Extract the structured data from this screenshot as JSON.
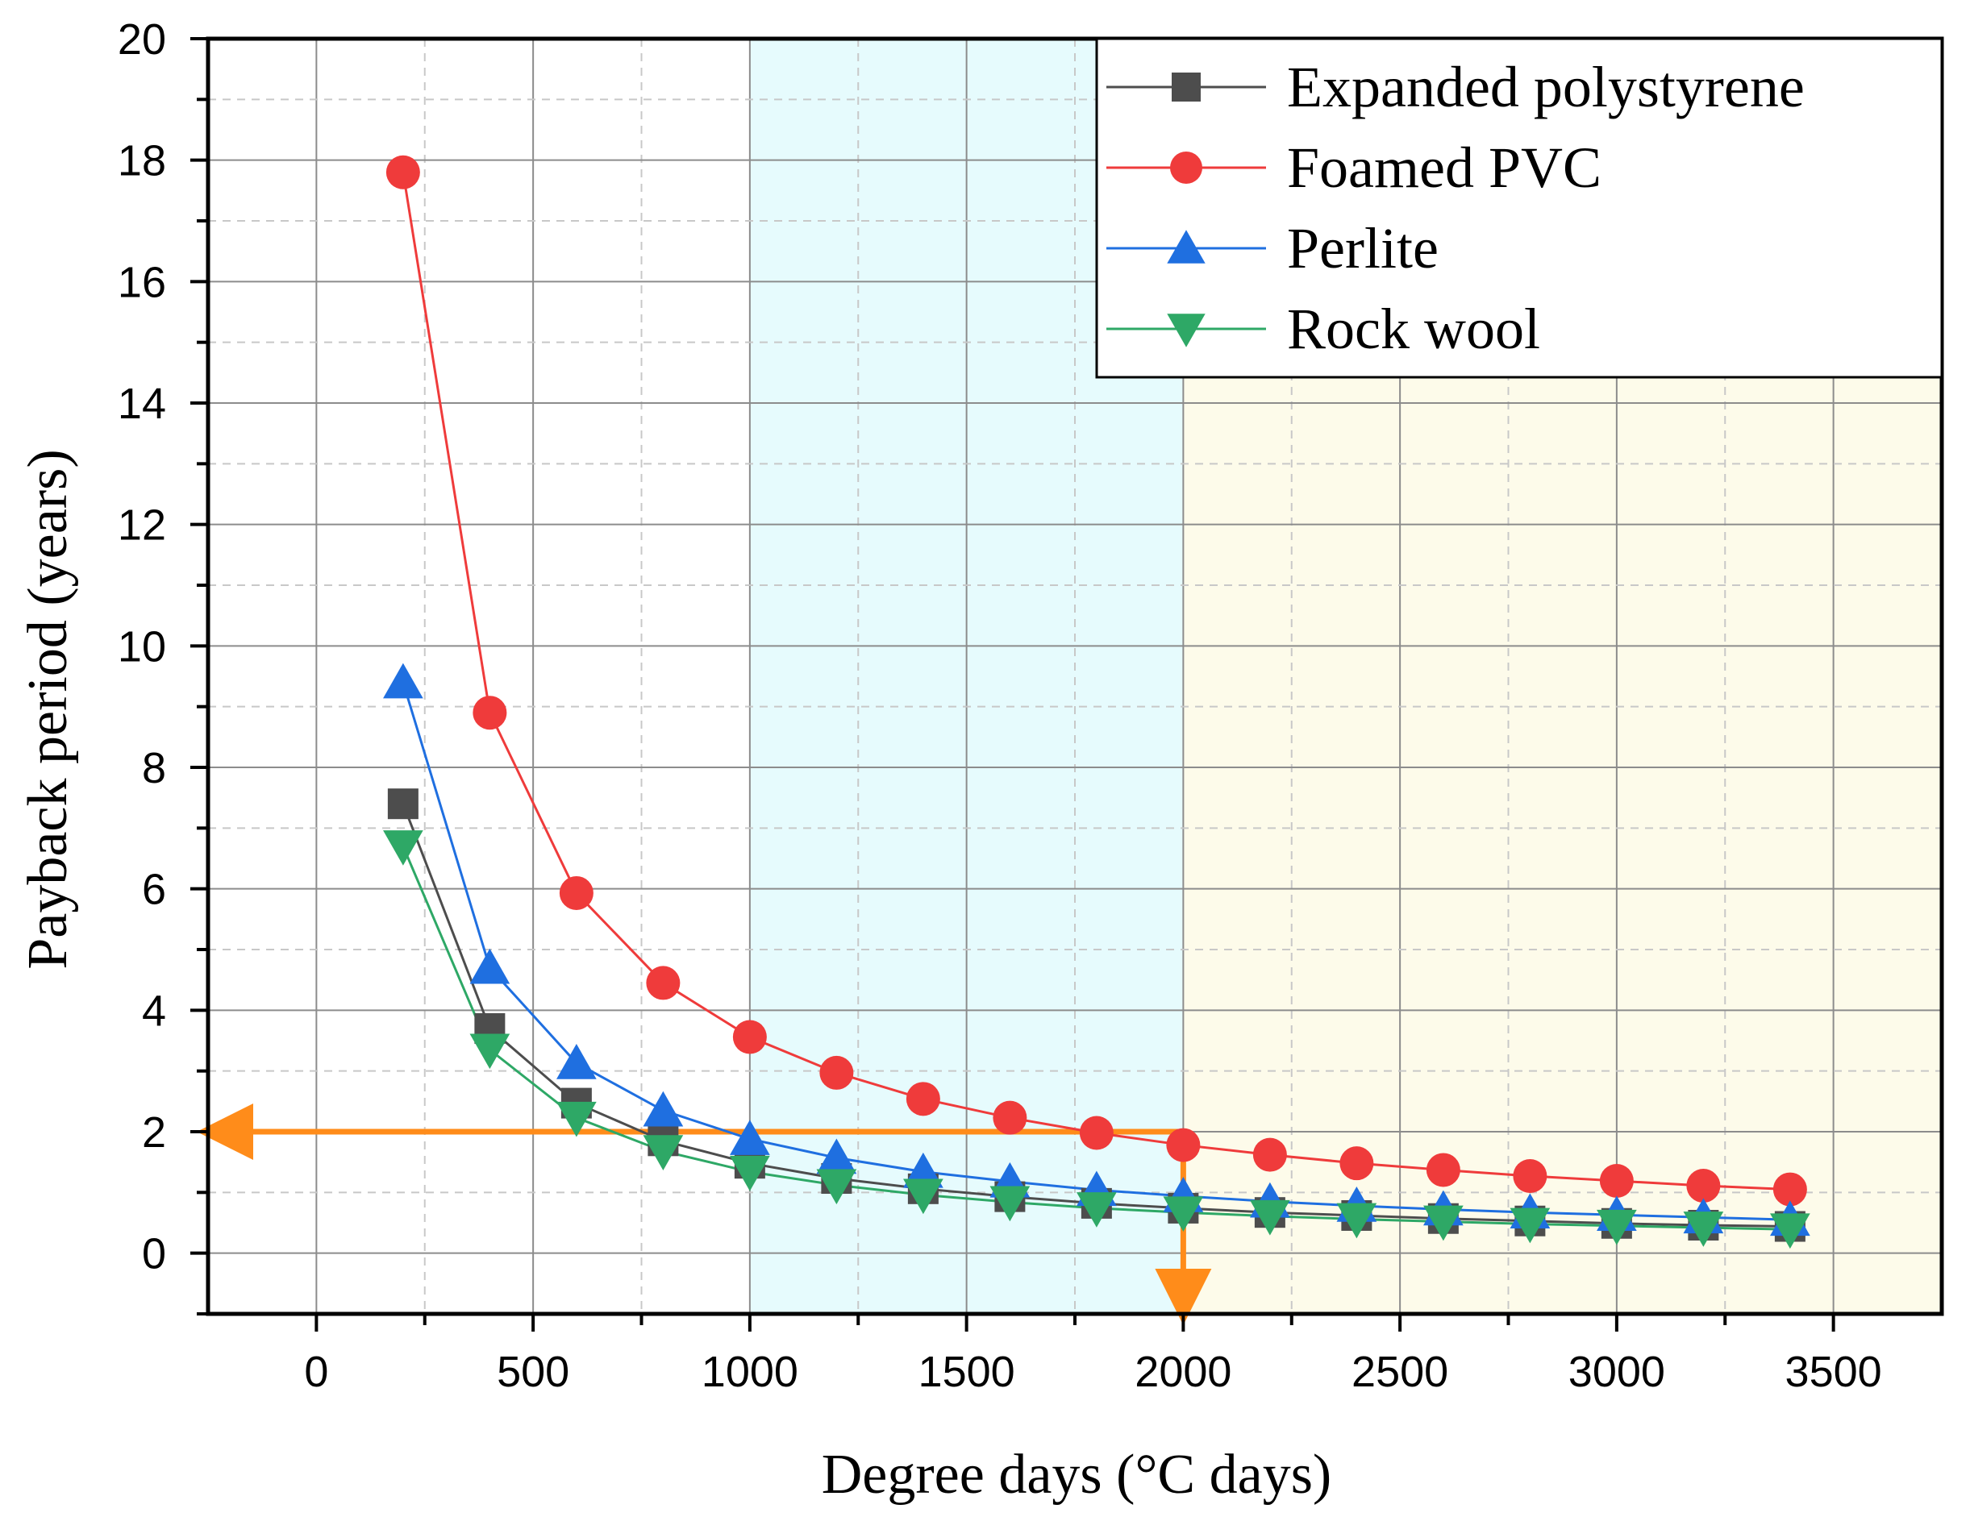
{
  "chart_data": {
    "type": "line",
    "title": "",
    "xlabel": "Degree days (°C days)",
    "ylabel": "Payback period (years)",
    "xlim": [
      -250,
      3750
    ],
    "ylim": [
      -1,
      20
    ],
    "xticks": [
      "0",
      "500",
      "1000",
      "1500",
      "2000",
      "2500",
      "3000",
      "3500"
    ],
    "yticks": [
      "0",
      "2",
      "4",
      "6",
      "8",
      "10",
      "12",
      "14",
      "16",
      "18",
      "20"
    ],
    "grid": true,
    "legend_position": "top-right",
    "x": [
      200,
      400,
      600,
      800,
      1000,
      1200,
      1400,
      1600,
      1800,
      2000,
      2200,
      2400,
      2600,
      2800,
      3000,
      3200,
      3400
    ],
    "series": [
      {
        "name": "Expanded polystyrene",
        "color": "#4d4d4d",
        "marker": "square",
        "values": [
          7.4,
          3.7,
          2.47,
          1.85,
          1.48,
          1.23,
          1.06,
          0.93,
          0.82,
          0.74,
          0.67,
          0.62,
          0.57,
          0.53,
          0.49,
          0.46,
          0.44
        ]
      },
      {
        "name": "Foamed PVC",
        "color": "#ef3b3b",
        "marker": "circle",
        "values": [
          17.8,
          8.9,
          5.93,
          4.45,
          3.56,
          2.97,
          2.54,
          2.23,
          1.98,
          1.78,
          1.62,
          1.48,
          1.37,
          1.27,
          1.19,
          1.11,
          1.05
        ]
      },
      {
        "name": "Perlite",
        "color": "#1f6fe0",
        "marker": "triangle-up",
        "values": [
          9.4,
          4.7,
          3.13,
          2.35,
          1.88,
          1.57,
          1.34,
          1.18,
          1.04,
          0.94,
          0.85,
          0.78,
          0.72,
          0.67,
          0.63,
          0.59,
          0.55
        ]
      },
      {
        "name": "Rock wool",
        "color": "#2ea866",
        "marker": "triangle-down",
        "values": [
          6.7,
          3.35,
          2.23,
          1.68,
          1.34,
          1.12,
          0.96,
          0.84,
          0.74,
          0.67,
          0.61,
          0.56,
          0.52,
          0.48,
          0.45,
          0.42,
          0.39
        ]
      }
    ],
    "shaded_regions": [
      {
        "x_start": 1000,
        "x_end": 2000,
        "color": "#e6fbfd"
      },
      {
        "x_start": 2000,
        "x_end": 3750,
        "color": "#fdfbea"
      }
    ],
    "annotation_arrows": [
      {
        "from": [
          2000,
          2
        ],
        "to": [
          -250,
          2
        ],
        "color": "#ff8c1a"
      },
      {
        "from": [
          2000,
          2
        ],
        "to": [
          2000,
          -1
        ],
        "color": "#ff8c1a"
      }
    ]
  }
}
